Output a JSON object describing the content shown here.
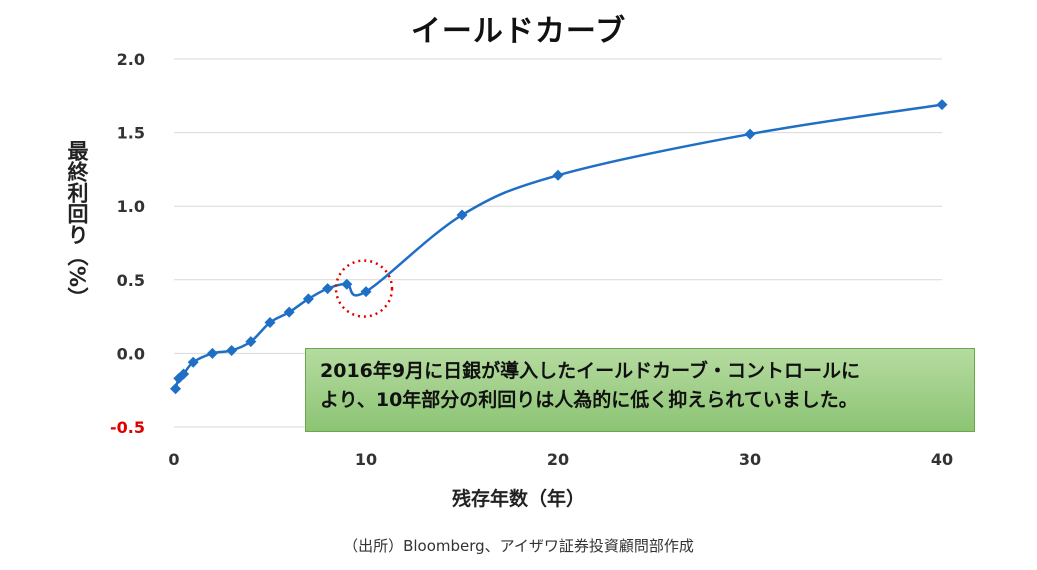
{
  "chart_data": {
    "type": "line",
    "title": "イールドカーブ",
    "xlabel": "残存年数（年）",
    "ylabel": "最終利回り（%）",
    "xlim": [
      0,
      40
    ],
    "ylim": [
      -0.5,
      2.0
    ],
    "x_ticks": [
      "0",
      "10",
      "20",
      "30",
      "40"
    ],
    "y_ticks": [
      "2.0",
      "1.5",
      "1.0",
      "0.5",
      "0.0",
      "-0.5"
    ],
    "grid": "horizontal",
    "series": [
      {
        "marker": "diamond",
        "color": "#1f6fc5",
        "x": [
          0.08,
          0.25,
          0.5,
          1,
          2,
          3,
          4,
          5,
          6,
          7,
          8,
          9,
          10,
          15,
          20,
          30,
          40
        ],
        "y": [
          -0.24,
          -0.17,
          -0.14,
          -0.06,
          0.0,
          0.02,
          0.08,
          0.21,
          0.28,
          0.37,
          0.44,
          0.47,
          0.42,
          0.94,
          1.21,
          1.49,
          1.69
        ]
      }
    ],
    "highlight": {
      "x": 10,
      "y": 0.42,
      "style": "red-dotted-circle"
    },
    "annotation": {
      "line1": "2016年9月に日銀が導入したイールドカーブ・コントロールに",
      "line2": "より、10年部分の利回りは人為的に低く抑えられていました。"
    }
  },
  "source": "（出所）Bloomberg、アイザワ証券投資顧問部作成"
}
